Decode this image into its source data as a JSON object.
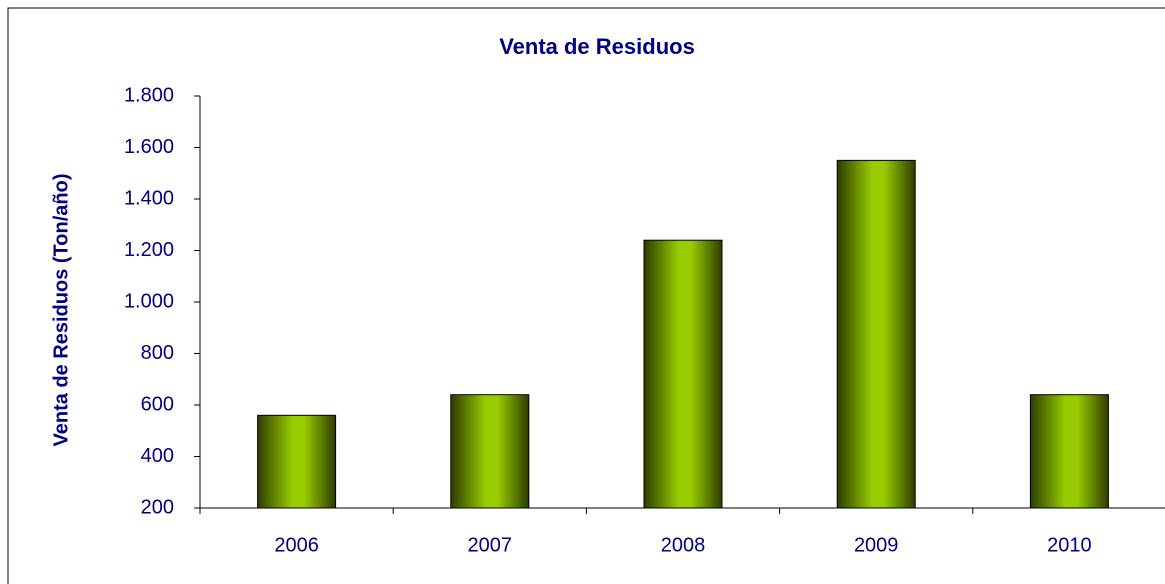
{
  "chart_data": {
    "type": "bar",
    "title": "Venta de Residuos",
    "y_label": "Venta de Residuos (Ton/año)",
    "categories": [
      "2006",
      "2007",
      "2008",
      "2009",
      "2010"
    ],
    "values": [
      560,
      640,
      1240,
      1550,
      640
    ],
    "color": "#99cc00",
    "ylim": [
      200,
      1800
    ],
    "yticks": [
      200,
      400,
      600,
      800,
      {
        "value": 1000,
        "label": "1.000"
      },
      {
        "value": 1200,
        "label": "1.200"
      },
      {
        "value": 1400,
        "label": "1.400"
      },
      {
        "value": 1600,
        "label": "1.600"
      },
      {
        "value": 1800,
        "label": "1.800"
      }
    ],
    "grid": false
  }
}
